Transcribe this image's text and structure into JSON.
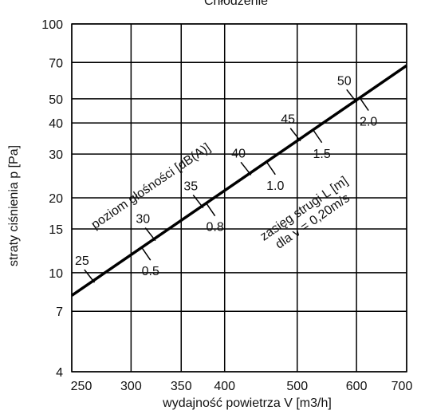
{
  "chart_data": {
    "type": "line",
    "title": "Chłodzenie",
    "xlabel": "wydajność powietrza V [m3/h]",
    "ylabel": "straty ciśnienia p [Pa]",
    "x_scale": "log",
    "y_scale": "log",
    "xlim": [
      250,
      700
    ],
    "ylim": [
      4,
      100
    ],
    "grid": true,
    "x_ticks": [
      250,
      300,
      350,
      400,
      500,
      600,
      700
    ],
    "x_tick_labels": [
      "250",
      "300",
      "350",
      "400",
      "500",
      "600",
      "700"
    ],
    "y_ticks": [
      4,
      7,
      10,
      15,
      20,
      30,
      40,
      50,
      70,
      100
    ],
    "y_tick_labels": [
      "4",
      "7",
      "10",
      "15",
      "20",
      "30",
      "40",
      "50",
      "70",
      "100"
    ],
    "series": [
      {
        "x": [
          250,
          700
        ],
        "y": [
          8.1,
          68
        ],
        "color": "#000000"
      }
    ],
    "noise_label": "poziom głośności [dB(A)]",
    "noise_levels": [
      {
        "label": "25",
        "x": 267
      },
      {
        "label": "30",
        "x": 322
      },
      {
        "label": "35",
        "x": 373
      },
      {
        "label": "40",
        "x": 432
      },
      {
        "label": "45",
        "x": 503
      },
      {
        "label": "50",
        "x": 598
      }
    ],
    "throw_label_line1": "zasięg strugi L [m]",
    "throw_label_line2": "dla v = 0,20m/s",
    "throw_values": [
      {
        "label": "0.5",
        "x": 310
      },
      {
        "label": "0.8",
        "x": 378
      },
      {
        "label": "1.0",
        "x": 455
      },
      {
        "label": "1.5",
        "x": 525
      },
      {
        "label": "2.0",
        "x": 606
      }
    ]
  }
}
